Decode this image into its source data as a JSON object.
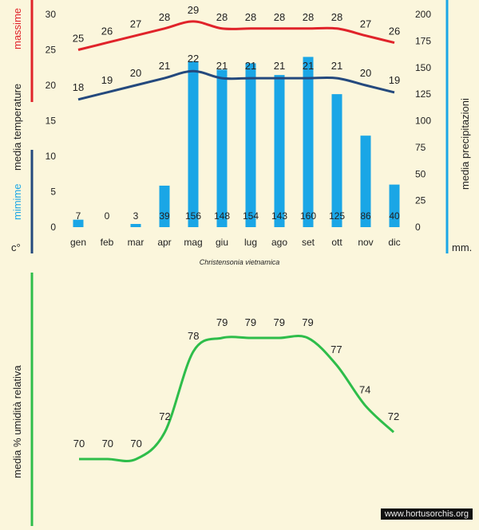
{
  "labels": {
    "max_label": "massime",
    "media_temp_label": "media  temperature",
    "min_label": "mimime",
    "deg_unit": "c°",
    "precip_label": "media  precipitazioni",
    "mm_unit": "mm.",
    "humidity_label": "media %  umidità relativa",
    "caption": "Christensonia vietnamica",
    "watermark": "www.hortusorchis.org"
  },
  "colors": {
    "max_line": "#e0232a",
    "min_line": "#24497d",
    "bars": "#1aa6e6",
    "humidity_line": "#2ebd4a",
    "left_bar_red": "#e0232a",
    "left_bar_navy": "#24497d",
    "right_bar": "#1aa6e6",
    "green_bar": "#2ebd4a"
  },
  "chart_data": [
    {
      "type": "bar+line",
      "categories": [
        "gen",
        "feb",
        "mar",
        "apr",
        "mag",
        "giu",
        "lug",
        "ago",
        "set",
        "ott",
        "nov",
        "dic"
      ],
      "series": [
        {
          "name": "massime",
          "type": "line",
          "axis": "left",
          "values": [
            25,
            26,
            27,
            28,
            29,
            28,
            28,
            28,
            28,
            28,
            27,
            26
          ]
        },
        {
          "name": "mimime",
          "type": "line",
          "axis": "left",
          "values": [
            18,
            19,
            20,
            21,
            22,
            21,
            21,
            21,
            21,
            21,
            20,
            19
          ]
        },
        {
          "name": "media precipitazioni",
          "type": "bar",
          "axis": "right",
          "values": [
            7,
            0,
            3,
            39,
            156,
            148,
            154,
            143,
            160,
            125,
            86,
            40
          ]
        }
      ],
      "y_left": {
        "min": 0,
        "max": 30,
        "ticks": [
          "0",
          "5",
          "10",
          "15",
          "20",
          "25",
          "30"
        ]
      },
      "y_right": {
        "min": 0,
        "max": 200,
        "ticks": [
          "0",
          "25",
          "50",
          "75",
          "100",
          "125",
          "150",
          "175",
          "200"
        ]
      },
      "grid": false
    },
    {
      "type": "line",
      "categories": [
        "gen",
        "feb",
        "mar",
        "apr",
        "mag",
        "giu",
        "lug",
        "ago",
        "set",
        "ott",
        "nov",
        "dic"
      ],
      "series": [
        {
          "name": "media % umidità relativa",
          "values": [
            70,
            70,
            70,
            72,
            78,
            79,
            79,
            79,
            79,
            77,
            74,
            72
          ]
        }
      ],
      "grid": false
    }
  ]
}
